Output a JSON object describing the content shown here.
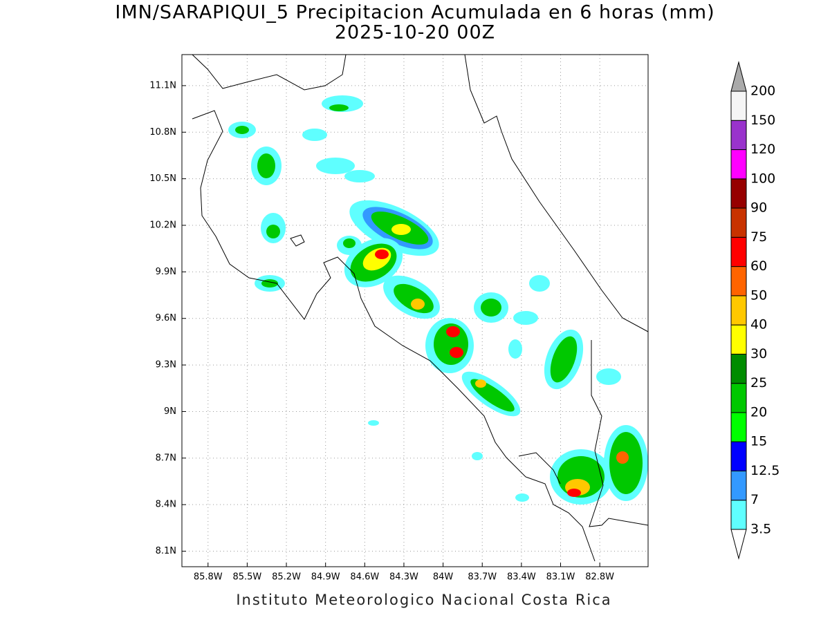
{
  "title": "IMN/SARAPIQUI_5 Precipitacion Acumulada en 6 horas (mm)",
  "subtitle": "2025-10-20 00Z",
  "footer": "Instituto Meteorologico Nacional Costa Rica",
  "map": {
    "lonlim": [
      86.0,
      82.43
    ],
    "latlim": [
      11.3,
      8.0
    ],
    "lat_ticks": [
      {
        "value": 11.1,
        "label": "11.1N"
      },
      {
        "value": 10.8,
        "label": "10.8N"
      },
      {
        "value": 10.5,
        "label": "10.5N"
      },
      {
        "value": 10.2,
        "label": "10.2N"
      },
      {
        "value": 9.9,
        "label": "9.9N"
      },
      {
        "value": 9.6,
        "label": "9.6N"
      },
      {
        "value": 9.3,
        "label": "9.3N"
      },
      {
        "value": 9.0,
        "label": "9N"
      },
      {
        "value": 8.7,
        "label": "8.7N"
      },
      {
        "value": 8.4,
        "label": "8.4N"
      },
      {
        "value": 8.1,
        "label": "8.1N"
      }
    ],
    "lon_ticks": [
      {
        "value": 85.8,
        "label": "85.8W"
      },
      {
        "value": 85.5,
        "label": "85.5W"
      },
      {
        "value": 85.2,
        "label": "85.2W"
      },
      {
        "value": 84.9,
        "label": "84.9W"
      },
      {
        "value": 84.6,
        "label": "84.6W"
      },
      {
        "value": 84.3,
        "label": "84.3W"
      },
      {
        "value": 84.0,
        "label": "84W"
      },
      {
        "value": 83.7,
        "label": "83.7W"
      },
      {
        "value": 83.4,
        "label": "83.4W"
      },
      {
        "value": 83.1,
        "label": "83.1W"
      },
      {
        "value": 82.8,
        "label": "82.8W"
      }
    ]
  },
  "colorbar": {
    "levels": [
      3.5,
      7,
      12.5,
      15,
      20,
      25,
      30,
      40,
      50,
      60,
      75,
      90,
      100,
      120,
      150,
      200
    ],
    "colors": [
      "#5fffff",
      "#3399ff",
      "#0000ff",
      "#00ff00",
      "#00c800",
      "#008c00",
      "#ffff00",
      "#ffc800",
      "#ff6400",
      "#ff0000",
      "#c83200",
      "#960000",
      "#ff00ff",
      "#9933cc",
      "#f5f5f5"
    ],
    "under_color": "#ffffff",
    "over_color": "#aaaaaa"
  }
}
